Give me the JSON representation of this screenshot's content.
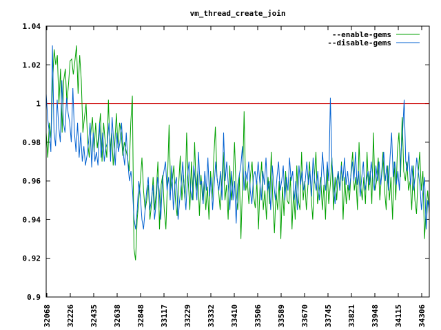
{
  "chart_data": {
    "type": "line",
    "title": "vm_thread_create_join",
    "xlabel": "",
    "ylabel": "",
    "ylim": [
      0.9,
      1.04
    ],
    "yticks": [
      "0.9",
      "0.92",
      "0.94",
      "0.96",
      "0.98",
      "1",
      "1.02",
      "1.04"
    ],
    "xtick_labels": [
      "32068",
      "32226",
      "32435",
      "32638",
      "32848",
      "33117",
      "33229",
      "33332",
      "33410",
      "33506",
      "33589",
      "33670",
      "33745",
      "33821",
      "33948",
      "34115",
      "34306"
    ],
    "legend_position": "top-right",
    "reference_line": {
      "value": 1,
      "color": "#cc0000"
    },
    "series": [
      {
        "name": "--enable-gems",
        "color": "#00a000",
        "values": [
          0.985,
          0.972,
          0.99,
          0.982,
          1.01,
          1.028,
          1.02,
          1.025,
          1.0,
          1.018,
          0.985,
          1.012,
          1.018,
          1.0,
          1.01,
          1.022,
          1.023,
          1.015,
          1.022,
          1.03,
          1.005,
          1.025,
          1.012,
          0.985,
          0.993,
          1.0,
          0.98,
          0.972,
          0.985,
          0.993,
          0.975,
          0.99,
          0.977,
          0.985,
          0.995,
          0.97,
          0.99,
          0.98,
          0.972,
          1.002,
          0.975,
          0.985,
          0.968,
          0.98,
          0.995,
          0.977,
          0.99,
          0.985,
          0.973,
          0.98,
          0.976,
          0.972,
          0.965,
          0.99,
          1.004,
          0.925,
          0.919,
          0.94,
          0.95,
          0.96,
          0.972,
          0.955,
          0.945,
          0.95,
          0.958,
          0.94,
          0.948,
          0.962,
          0.945,
          0.955,
          0.97,
          0.935,
          0.958,
          0.963,
          0.945,
          0.935,
          0.96,
          0.989,
          0.955,
          0.96,
          0.968,
          0.95,
          0.942,
          0.958,
          0.973,
          0.95,
          0.963,
          0.95,
          0.985,
          0.96,
          0.945,
          0.97,
          0.95,
          0.98,
          0.955,
          0.965,
          0.942,
          0.963,
          0.95,
          0.96,
          0.945,
          0.957,
          0.94,
          0.965,
          0.95,
          0.972,
          0.988,
          0.962,
          0.955,
          0.945,
          0.96,
          0.975,
          0.95,
          0.958,
          0.94,
          0.968,
          0.95,
          0.96,
          0.98,
          0.955,
          0.945,
          0.963,
          0.93,
          0.958,
          0.996,
          0.955,
          0.96,
          0.948,
          0.963,
          0.97,
          0.952,
          0.946,
          0.96,
          0.935,
          0.958,
          0.97,
          0.945,
          0.955,
          0.94,
          0.962,
          0.948,
          0.975,
          0.95,
          0.933,
          0.955,
          0.945,
          0.96,
          0.93,
          0.957,
          0.942,
          0.965,
          0.95,
          0.948,
          0.962,
          0.935,
          0.955,
          0.94,
          0.968,
          0.95,
          0.945,
          0.975,
          0.95,
          0.96,
          0.945,
          0.958,
          0.97,
          0.952,
          0.94,
          0.962,
          0.975,
          0.948,
          0.955,
          0.962,
          0.945,
          0.958,
          0.94,
          0.968,
          0.948,
          0.958,
          0.972,
          0.945,
          0.962,
          0.95,
          0.965,
          0.955,
          0.97,
          0.94,
          0.962,
          0.948,
          0.958,
          0.95,
          0.965,
          0.975,
          0.955,
          0.962,
          0.945,
          0.98,
          0.958,
          0.95,
          0.962,
          0.948,
          0.975,
          0.955,
          0.965,
          0.948,
          0.985,
          0.955,
          0.96,
          0.972,
          0.95,
          0.962,
          0.975,
          0.955,
          0.945,
          0.968,
          0.95,
          0.962,
          0.94,
          0.97,
          0.95,
          0.975,
          0.985,
          0.962,
          0.993,
          0.965,
          0.96,
          0.97,
          0.955,
          0.96,
          0.945,
          0.968,
          0.95,
          0.943,
          0.963,
          0.975,
          0.955,
          0.965,
          0.93,
          0.945,
          0.955,
          0.943
        ]
      },
      {
        "name": "--disable-gems",
        "color": "#0060d0",
        "values": [
          1.005,
          0.992,
          0.985,
          0.975,
          1.03,
          0.985,
          0.978,
          1.002,
          0.988,
          0.98,
          1.012,
          0.99,
          0.985,
          1.003,
          0.995,
          0.99,
          0.98,
          1.008,
          0.985,
          0.975,
          0.99,
          0.972,
          0.985,
          0.97,
          0.978,
          0.968,
          0.973,
          0.98,
          0.99,
          0.967,
          0.985,
          0.97,
          0.975,
          0.968,
          0.99,
          0.972,
          0.985,
          0.97,
          0.977,
          0.98,
          0.99,
          0.97,
          0.993,
          0.98,
          0.968,
          0.985,
          0.975,
          0.98,
          0.99,
          0.975,
          0.968,
          0.985,
          0.97,
          0.96,
          0.965,
          0.955,
          0.94,
          0.935,
          0.945,
          0.96,
          0.952,
          0.94,
          0.935,
          0.945,
          0.955,
          0.962,
          0.945,
          0.95,
          0.958,
          0.94,
          0.948,
          0.962,
          0.955,
          0.94,
          0.96,
          0.965,
          0.97,
          0.955,
          0.962,
          0.95,
          0.968,
          0.945,
          0.958,
          0.962,
          0.94,
          0.95,
          0.958,
          0.97,
          0.955,
          0.945,
          0.962,
          0.97,
          0.955,
          0.95,
          0.968,
          0.96,
          0.95,
          0.975,
          0.958,
          0.96,
          0.948,
          0.965,
          0.955,
          0.972,
          0.952,
          0.962,
          0.945,
          0.958,
          0.97,
          0.96,
          0.955,
          0.965,
          0.95,
          0.985,
          0.96,
          0.97,
          0.958,
          0.945,
          0.965,
          0.95,
          0.96,
          0.938,
          0.958,
          0.963,
          0.968,
          0.978,
          0.955,
          0.965,
          0.96,
          0.97,
          0.955,
          0.948,
          0.962,
          0.965,
          0.958,
          0.97,
          0.96,
          0.95,
          0.965,
          0.958,
          0.972,
          0.955,
          0.96,
          0.945,
          0.968,
          0.958,
          0.95,
          0.962,
          0.97,
          0.955,
          0.96,
          0.968,
          0.95,
          0.962,
          0.955,
          0.972,
          0.96,
          0.965,
          0.95,
          0.96,
          0.945,
          0.968,
          0.958,
          0.965,
          0.955,
          0.96,
          0.97,
          0.958,
          0.965,
          0.952,
          0.972,
          0.96,
          0.955,
          0.965,
          0.95,
          0.958,
          0.975,
          0.962,
          0.955,
          0.97,
          0.96,
          1.003,
          0.97,
          0.958,
          0.948,
          0.96,
          0.965,
          0.955,
          0.968,
          0.96,
          0.972,
          0.958,
          0.965,
          0.955,
          0.962,
          0.97,
          0.96,
          0.975,
          0.958,
          0.965,
          0.952,
          0.962,
          0.97,
          0.955,
          0.96,
          0.965,
          0.958,
          0.97,
          0.962,
          0.955,
          0.968,
          0.96,
          0.97,
          0.958,
          0.965,
          0.975,
          0.96,
          0.968,
          0.955,
          0.972,
          0.985,
          0.962,
          0.97,
          0.958,
          0.965,
          0.955,
          0.975,
          0.985,
          1.002,
          0.97,
          0.965,
          0.975,
          0.958,
          0.968,
          0.955,
          0.962,
          0.972,
          0.965,
          0.958,
          0.945,
          0.955,
          0.962,
          0.935,
          0.95,
          0.945
        ]
      }
    ]
  }
}
